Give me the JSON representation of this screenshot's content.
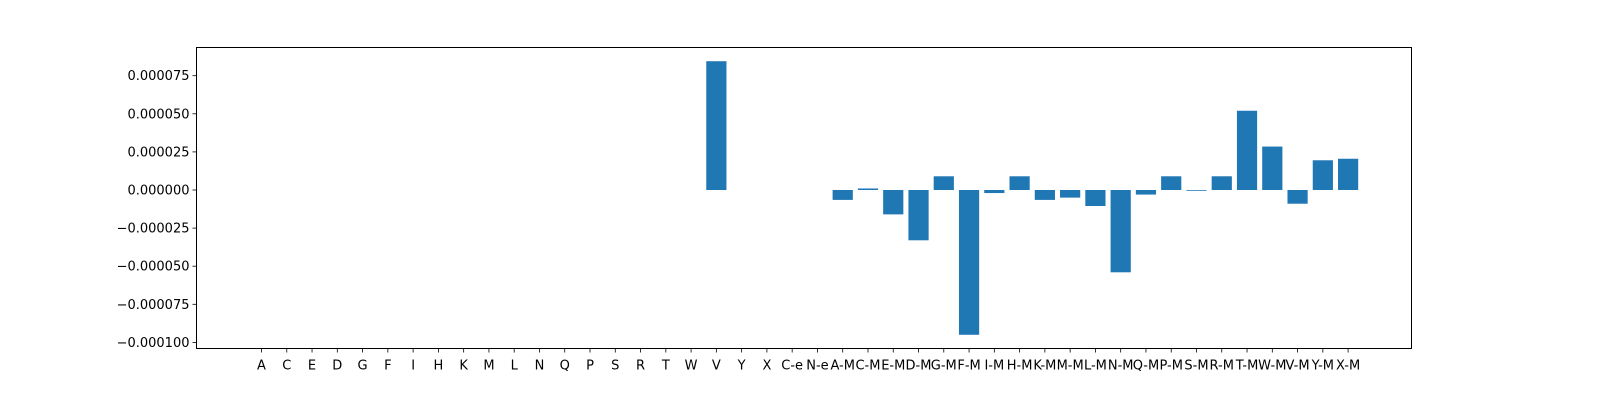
{
  "chart_data": {
    "type": "bar",
    "categories": [
      "A",
      "C",
      "E",
      "D",
      "G",
      "F",
      "I",
      "H",
      "K",
      "M",
      "L",
      "N",
      "Q",
      "P",
      "S",
      "R",
      "T",
      "W",
      "V",
      "Y",
      "X",
      "C-e",
      "N-e",
      "A-M",
      "C-M",
      "E-M",
      "D-M",
      "G-M",
      "F-M",
      "I-M",
      "H-M",
      "K-M",
      "M-M",
      "L-M",
      "N-M",
      "Q-M",
      "P-M",
      "S-M",
      "R-M",
      "T-M",
      "W-M",
      "V-M",
      "Y-M",
      "X-M"
    ],
    "values": [
      0,
      0,
      0,
      0,
      0,
      0,
      0,
      0,
      0,
      0,
      0,
      0,
      0,
      0,
      0,
      0,
      0,
      0,
      8.45e-05,
      0,
      0,
      0,
      0,
      -6.5e-06,
      1e-06,
      -1.6e-05,
      -3.3e-05,
      9e-06,
      -9.5e-05,
      -2e-06,
      9e-06,
      -6.5e-06,
      -5e-06,
      -1.05e-05,
      -5.4e-05,
      -3e-06,
      9e-06,
      -5e-07,
      9e-06,
      5.2e-05,
      2.85e-05,
      -9e-06,
      1.95e-05,
      2.05e-05
    ],
    "ylim": [
      -0.000104,
      9.35e-05
    ],
    "yticks": [
      -0.0001,
      -7.5e-05,
      -5e-05,
      -2.5e-05,
      0,
      2.5e-05,
      5e-05,
      7.5e-05
    ],
    "ytick_labels": [
      "−0.000100",
      "−0.000075",
      "−0.000050",
      "−0.000025",
      "0.000000",
      "0.000025",
      "0.000050",
      "0.000075"
    ],
    "bar_color": "#1f77b4",
    "grid": false,
    "title": "",
    "xlabel": "",
    "ylabel": ""
  }
}
